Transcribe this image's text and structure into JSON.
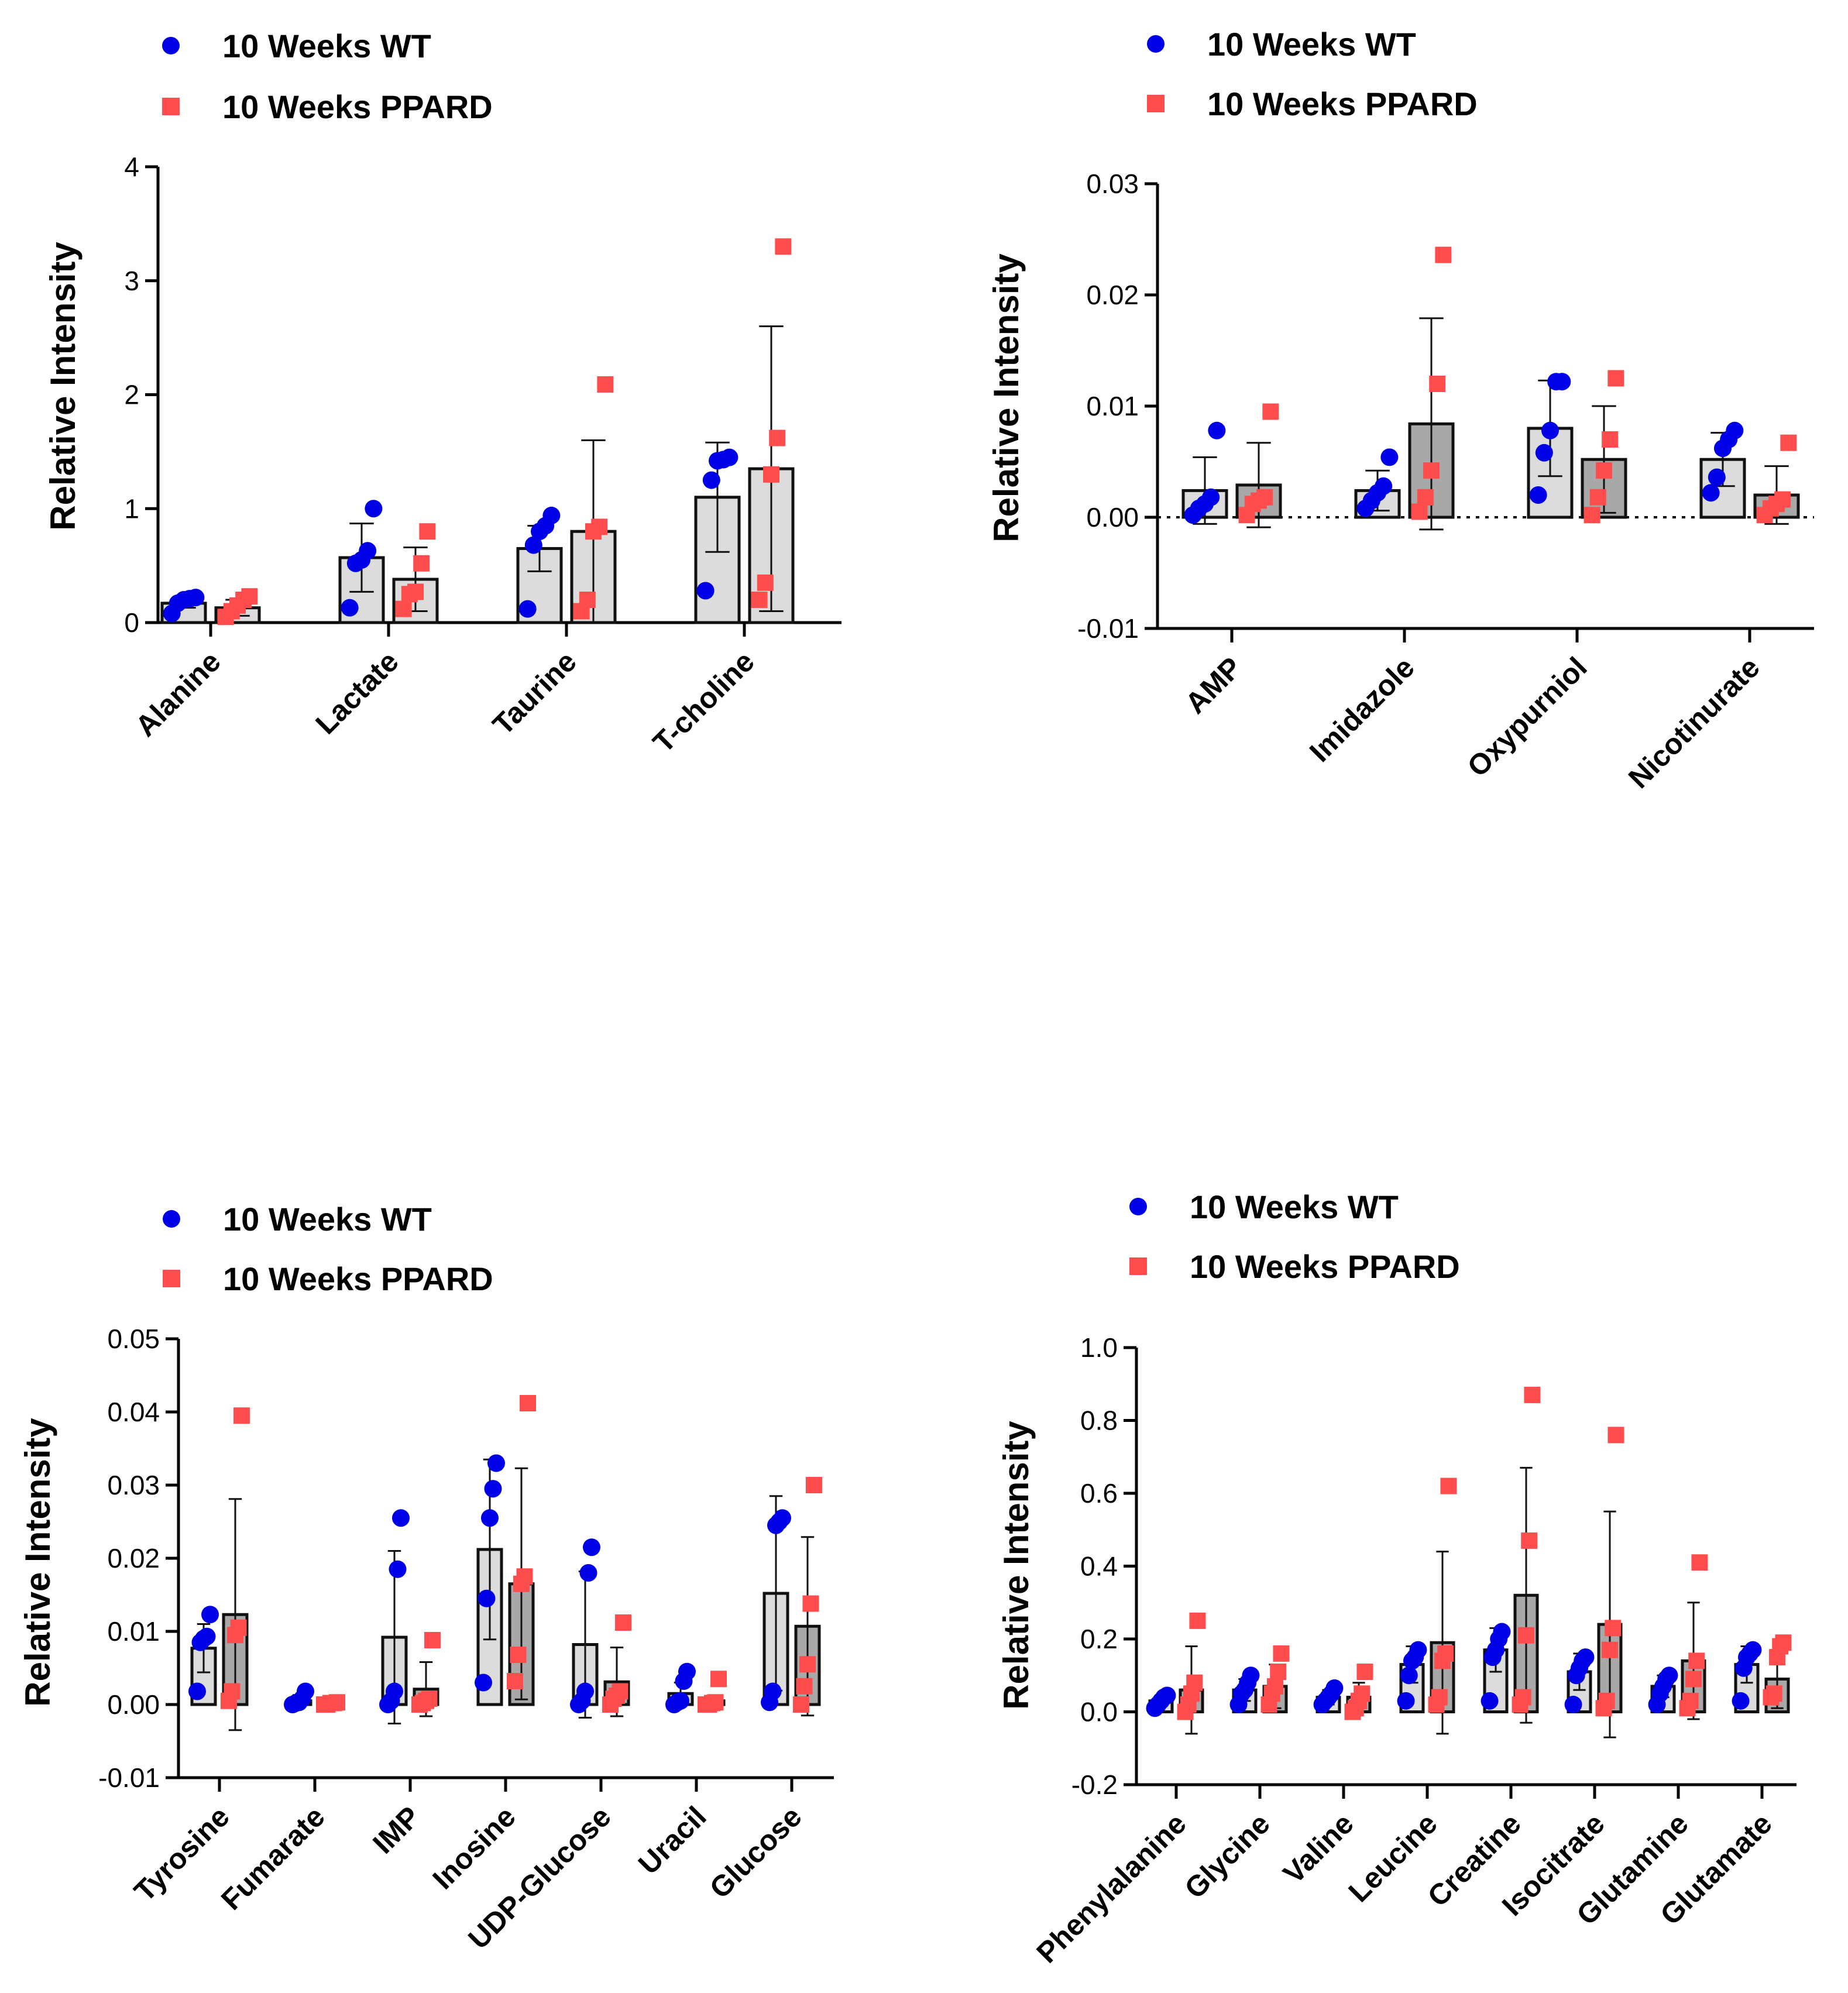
{
  "chart_data": [
    {
      "type": "bar",
      "title": "",
      "xlabel": "",
      "ylabel": "Relative Intensity",
      "ylim": [
        0,
        4
      ],
      "yticks": [
        0,
        1,
        2,
        3,
        4
      ],
      "ytick_labels": [
        "0",
        "1",
        "2",
        "3",
        "4"
      ],
      "zero_line": false,
      "categories": [
        "Alanine",
        "Lactate",
        "Taurine",
        "T-choline"
      ],
      "legend": [
        {
          "name": "10 Weeks WT",
          "marker": "circle",
          "color": "#0000e6"
        },
        {
          "name": "10 Weeks PPARD",
          "marker": "square",
          "color": "#ff4d4d"
        }
      ],
      "series": [
        {
          "name": "10 Weeks WT",
          "bar_fill": "#dcdcdc",
          "means": [
            0.17,
            0.57,
            0.65,
            1.1
          ],
          "errors": [
            0.04,
            0.3,
            0.2,
            0.48
          ],
          "points": [
            [
              0.08,
              0.17,
              0.2,
              0.21,
              0.22
            ],
            [
              0.13,
              0.52,
              0.55,
              0.63,
              1.0
            ],
            [
              0.12,
              0.68,
              0.8,
              0.85,
              0.94
            ],
            [
              0.28,
              1.25,
              1.42,
              1.43,
              1.45
            ]
          ]
        },
        {
          "name": "10 Weeks PPARD",
          "bar_fill": "#dcdcdc",
          "means": [
            0.13,
            0.38,
            0.8,
            1.35
          ],
          "errors": [
            0.07,
            0.28,
            0.8,
            1.25
          ],
          "points": [
            [
              0.05,
              0.1,
              0.15,
              0.2,
              0.23
            ],
            [
              0.12,
              0.25,
              0.27,
              0.52,
              0.8
            ],
            [
              0.1,
              0.2,
              0.8,
              0.84,
              2.09
            ],
            [
              0.2,
              0.35,
              1.3,
              1.62,
              3.3
            ]
          ]
        }
      ]
    },
    {
      "type": "bar",
      "title": "",
      "xlabel": "",
      "ylabel": "Relative Intensity",
      "ylim": [
        -0.01,
        0.03
      ],
      "yticks": [
        -0.01,
        0.0,
        0.01,
        0.02,
        0.03
      ],
      "ytick_labels": [
        "-0.01",
        "0.00",
        "0.01",
        "0.02",
        "0.03"
      ],
      "zero_line": true,
      "categories": [
        "AMP",
        "Imidazole",
        "Oxypurniol",
        "Nicotinurate"
      ],
      "legend": [
        {
          "name": "10 Weeks WT",
          "marker": "circle",
          "color": "#0000e6"
        },
        {
          "name": "10 Weeks PPARD",
          "marker": "square",
          "color": "#ff4d4d"
        }
      ],
      "series": [
        {
          "name": "10 Weeks WT",
          "bar_fill": "#dcdcdc",
          "means": [
            0.0024,
            0.0024,
            0.008,
            0.0052
          ],
          "errors": [
            0.003,
            0.0018,
            0.0043,
            0.0024
          ],
          "points": [
            [
              0.0002,
              0.0008,
              0.0012,
              0.0018,
              0.0078
            ],
            [
              0.0008,
              0.0015,
              0.0022,
              0.0028,
              0.0054
            ],
            [
              0.002,
              0.0058,
              0.0078,
              0.0122,
              0.0122
            ],
            [
              0.0022,
              0.0036,
              0.0062,
              0.007,
              0.0078
            ]
          ]
        },
        {
          "name": "10 Weeks PPARD",
          "bar_fill": "#a8a8a8",
          "means": [
            0.0029,
            0.0084,
            0.0052,
            0.002
          ],
          "errors": [
            0.0038,
            0.0095,
            0.0048,
            0.0026
          ],
          "points": [
            [
              0.0002,
              0.0012,
              0.0015,
              0.0018,
              0.0095
            ],
            [
              0.0005,
              0.0018,
              0.0042,
              0.012,
              0.0236
            ],
            [
              0.0002,
              0.0018,
              0.0042,
              0.007,
              0.0125
            ],
            [
              0.0002,
              0.0008,
              0.0012,
              0.0016,
              0.0067
            ]
          ]
        }
      ]
    },
    {
      "type": "bar",
      "title": "",
      "xlabel": "",
      "ylabel": "Relative Intensity",
      "ylim": [
        -0.01,
        0.05
      ],
      "yticks": [
        -0.01,
        0.0,
        0.01,
        0.02,
        0.03,
        0.04,
        0.05
      ],
      "ytick_labels": [
        "-0.01",
        "0.00",
        "0.01",
        "0.02",
        "0.03",
        "0.04",
        "0.05"
      ],
      "zero_line": false,
      "categories": [
        "Tyrosine",
        "Fumarate",
        "IMP",
        "Inosine",
        "UDP-Glucose",
        "Uracil",
        "Glucose"
      ],
      "legend": [
        {
          "name": "10 Weeks WT",
          "marker": "circle",
          "color": "#0000e6"
        },
        {
          "name": "10 Weeks PPARD",
          "marker": "square",
          "color": "#ff4d4d"
        }
      ],
      "series": [
        {
          "name": "10 Weeks WT",
          "bar_fill": "#dcdcdc",
          "means": [
            0.0077,
            0.0005,
            0.0092,
            0.0212,
            0.0082,
            0.0015,
            0.0152
          ],
          "errors": [
            0.0033,
            0.0008,
            0.0118,
            0.0123,
            0.01,
            0.0015,
            0.0133
          ],
          "points": [
            [
              0.0018,
              0.0085,
              0.009,
              0.0093,
              0.0123
            ],
            [
              0.0,
              0.0002,
              0.0003,
              0.0008,
              0.0018
            ],
            [
              0.0,
              0.0005,
              0.0018,
              0.0185,
              0.0255
            ],
            [
              0.003,
              0.0145,
              0.0255,
              0.0295,
              0.033
            ],
            [
              0.0,
              0.0005,
              0.0018,
              0.018,
              0.0215
            ],
            [
              0.0,
              0.0003,
              0.0005,
              0.0032,
              0.0045
            ],
            [
              0.0003,
              0.0018,
              0.0245,
              0.025,
              0.0255
            ]
          ]
        },
        {
          "name": "10 Weeks PPARD",
          "bar_fill": "#a8a8a8",
          "means": [
            0.0123,
            0.0002,
            0.0021,
            0.0165,
            0.0031,
            0.0005,
            0.0107
          ],
          "errors": [
            0.0158,
            0.0002,
            0.0037,
            0.0158,
            0.0047,
            0.0005,
            0.0122
          ],
          "points": [
            [
              0.0005,
              0.0018,
              0.0095,
              0.0105,
              0.0395
            ],
            [
              0.0,
              0.0,
              0.0002,
              0.0002,
              0.0003
            ],
            [
              0.0,
              0.0002,
              0.0005,
              0.0008,
              0.0088
            ],
            [
              0.0032,
              0.0068,
              0.0165,
              0.0175,
              0.0412
            ],
            [
              0.0,
              0.0008,
              0.0012,
              0.0018,
              0.0112
            ],
            [
              0.0,
              0.0,
              0.0002,
              0.0003,
              0.0035
            ],
            [
              0.0,
              0.0025,
              0.0055,
              0.0138,
              0.03
            ]
          ]
        }
      ]
    },
    {
      "type": "bar",
      "title": "",
      "xlabel": "",
      "ylabel": "Relative Intensity",
      "ylim": [
        -0.2,
        1.0
      ],
      "yticks": [
        -0.2,
        0.0,
        0.2,
        0.4,
        0.6,
        0.8,
        1.0
      ],
      "ytick_labels": [
        "-0.2",
        "0.0",
        "0.2",
        "0.4",
        "0.6",
        "0.8",
        "1.0"
      ],
      "zero_line": false,
      "categories": [
        "Phenylalanine",
        "Glycine",
        "Valine",
        "Leucine",
        "Creatine",
        "Isocitrate",
        "Glutamine",
        "Glutamate"
      ],
      "legend": [
        {
          "name": "10 Weeks WT",
          "marker": "circle",
          "color": "#0000e6"
        },
        {
          "name": "10 Weeks PPARD",
          "marker": "square",
          "color": "#ff4d4d"
        }
      ],
      "series": [
        {
          "name": "10 Weeks WT",
          "bar_fill": "#dcdcdc",
          "means": [
            0.03,
            0.06,
            0.04,
            0.13,
            0.17,
            0.11,
            0.07,
            0.13
          ],
          "errors": [
            0.015,
            0.03,
            0.02,
            0.05,
            0.06,
            0.05,
            0.03,
            0.05
          ],
          "points": [
            [
              0.01,
              0.02,
              0.03,
              0.04,
              0.045
            ],
            [
              0.02,
              0.05,
              0.06,
              0.08,
              0.1
            ],
            [
              0.02,
              0.03,
              0.04,
              0.05,
              0.065
            ],
            [
              0.03,
              0.1,
              0.14,
              0.15,
              0.17
            ],
            [
              0.03,
              0.15,
              0.17,
              0.2,
              0.22
            ],
            [
              0.02,
              0.1,
              0.12,
              0.14,
              0.15
            ],
            [
              0.02,
              0.05,
              0.07,
              0.09,
              0.1
            ],
            [
              0.03,
              0.12,
              0.15,
              0.16,
              0.17
            ]
          ]
        },
        {
          "name": "10 Weeks PPARD",
          "bar_fill": "#a8a8a8",
          "means": [
            0.06,
            0.07,
            0.04,
            0.19,
            0.32,
            0.24,
            0.14,
            0.09
          ],
          "errors": [
            0.12,
            0.06,
            0.04,
            0.25,
            0.35,
            0.31,
            0.16,
            0.08
          ],
          "points": [
            [
              0.0,
              0.02,
              0.05,
              0.08,
              0.25
            ],
            [
              0.02,
              0.05,
              0.07,
              0.11,
              0.16
            ],
            [
              0.0,
              0.01,
              0.03,
              0.05,
              0.11
            ],
            [
              0.02,
              0.04,
              0.14,
              0.16,
              0.62
            ],
            [
              0.02,
              0.04,
              0.21,
              0.47,
              0.87
            ],
            [
              0.01,
              0.03,
              0.17,
              0.23,
              0.76
            ],
            [
              0.01,
              0.03,
              0.09,
              0.14,
              0.41
            ],
            [
              0.04,
              0.05,
              0.15,
              0.18,
              0.19
            ]
          ]
        }
      ]
    }
  ]
}
